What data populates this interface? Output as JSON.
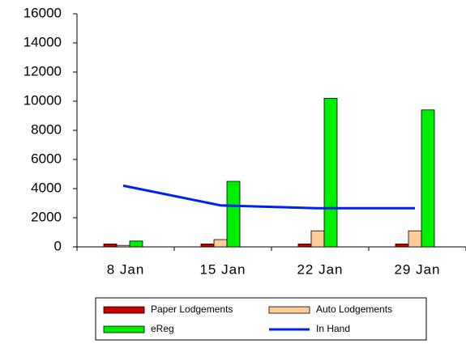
{
  "chart_data": {
    "type": "bar",
    "categories": [
      "8 Jan",
      "15 Jan",
      "22 Jan",
      "29 Jan"
    ],
    "series": [
      {
        "name": "Paper Lodgements",
        "color": "#cc0000",
        "values": [
          200,
          200,
          200,
          200
        ]
      },
      {
        "name": "Auto Lodgements",
        "color": "#ffcc99",
        "values": [
          100,
          500,
          1100,
          1100
        ]
      },
      {
        "name": "eReg",
        "color": "#00ee00",
        "values": [
          400,
          4500,
          10200,
          9400
        ]
      },
      {
        "name": "In Hand",
        "color": "#0022ee",
        "type": "line",
        "values": [
          4200,
          2850,
          2650,
          2650
        ]
      }
    ],
    "ylim": [
      0,
      16000
    ],
    "yticks": [
      0,
      2000,
      4000,
      6000,
      8000,
      10000,
      12000,
      14000,
      16000
    ],
    "grid": false,
    "legend": "bottom"
  }
}
